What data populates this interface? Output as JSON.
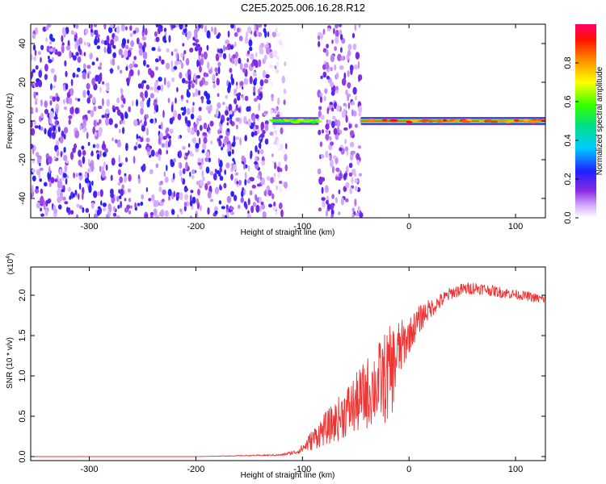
{
  "title": "C2E5.2025.006.16.28.R12",
  "chart_data": [
    {
      "type": "heatmap",
      "xlabel": "Height of straight line (km)",
      "ylabel": "Frequency (Hz)",
      "xlim": [
        -355,
        128
      ],
      "ylim": [
        -50,
        50
      ],
      "x_ticks": [
        -300,
        -200,
        -100,
        0,
        100
      ],
      "x_tick_labels": [
        "-300",
        "-200",
        "-100",
        "0",
        "100"
      ],
      "y_ticks": [
        -40,
        -20,
        0,
        20,
        40
      ],
      "y_tick_labels": [
        "-40",
        "-20",
        "0",
        "20",
        "40"
      ],
      "colorbar": {
        "label": "Normalized spectral amplitude",
        "range": [
          0,
          1
        ],
        "ticks": [
          0.0,
          0.2,
          0.4,
          0.6,
          0.8
        ],
        "tick_labels": [
          "0.0",
          "0.2",
          "0.4",
          "0.6",
          "0.8"
        ],
        "colormap": "rainbow (white-violet-blue-cyan-green-yellow-red-magenta)"
      },
      "regions": [
        {
          "x_range": [
            -355,
            -130
          ],
          "pattern": "broadband speckle noise",
          "amplitude": [
            0.05,
            0.25
          ]
        },
        {
          "x_range": [
            -130,
            -115
          ],
          "pattern": "tapering speckle",
          "amplitude": [
            0.0,
            0.15
          ]
        },
        {
          "x_range": [
            -115,
            -85
          ],
          "pattern": "blank",
          "amplitude": [
            0,
            0
          ]
        },
        {
          "x_range": [
            -85,
            -45
          ],
          "pattern": "speckle noise",
          "amplitude": [
            0.05,
            0.2
          ]
        },
        {
          "x_range": [
            -45,
            128
          ],
          "pattern": "mostly blank",
          "amplitude": [
            0,
            0
          ]
        }
      ],
      "ridge": {
        "frequency": 0,
        "segments": [
          {
            "x_range": [
              -128,
              -85
            ],
            "peak_amplitude": 0.65
          },
          {
            "x_range": [
              -45,
              128
            ],
            "peak_amplitude": 0.95
          }
        ]
      }
    },
    {
      "type": "line",
      "xlabel": "Height of straight line (km)",
      "ylabel": "SNR (10 * v/v)",
      "y_multiplier_label": "(x10",
      "y_multiplier_exp": "4",
      "xlim": [
        -355,
        128
      ],
      "ylim": [
        -0.05,
        2.35
      ],
      "x_ticks": [
        -300,
        -200,
        -100,
        0,
        100
      ],
      "x_tick_labels": [
        "-300",
        "-200",
        "-100",
        "0",
        "100"
      ],
      "y_ticks": [
        0.0,
        0.5,
        1.0,
        1.5,
        2.0
      ],
      "y_tick_labels": [
        "0.0",
        "0.5",
        "1.0",
        "1.5",
        "2.0"
      ],
      "series": [
        {
          "color": "#ee3333",
          "x": [
            -355,
            -300,
            -200,
            -120,
            -105,
            -100,
            -90,
            -80,
            -70,
            -60,
            -50,
            -40,
            -30,
            -20,
            -15,
            -10,
            -5,
            0,
            5,
            10,
            15,
            20,
            25,
            30,
            40,
            50,
            60,
            70,
            80,
            90,
            100,
            110,
            120,
            128
          ],
          "y": [
            0.0,
            0.0,
            0.0,
            0.02,
            0.06,
            0.1,
            0.22,
            0.33,
            0.42,
            0.55,
            0.65,
            0.78,
            0.9,
            1.0,
            1.1,
            1.3,
            1.4,
            1.5,
            1.6,
            1.7,
            1.78,
            1.83,
            1.88,
            1.93,
            2.03,
            2.07,
            2.09,
            2.08,
            2.05,
            2.03,
            2.01,
            1.99,
            1.96,
            1.95
          ],
          "noise": [
            0.0,
            0.0,
            0.0,
            0.01,
            0.03,
            0.06,
            0.14,
            0.2,
            0.25,
            0.32,
            0.38,
            0.45,
            0.5,
            0.6,
            0.55,
            0.4,
            0.3,
            0.22,
            0.2,
            0.18,
            0.15,
            0.12,
            0.1,
            0.1,
            0.08,
            0.08,
            0.08,
            0.07,
            0.07,
            0.07,
            0.06,
            0.06,
            0.06,
            0.06
          ]
        }
      ]
    }
  ]
}
